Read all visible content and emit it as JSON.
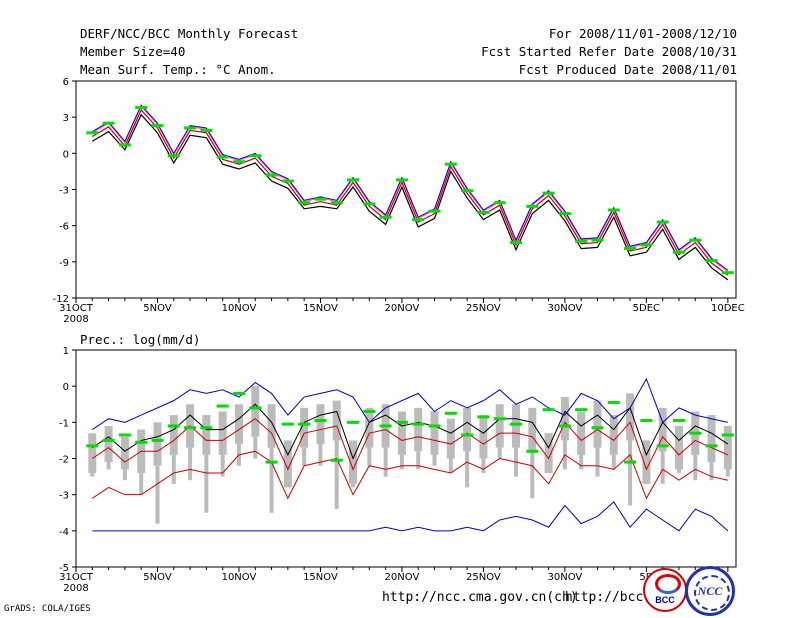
{
  "header": {
    "title": "DERF/NCC/BCC Monthly Forecast",
    "member": "Member Size=40",
    "variable": "Mean Surf. Temp.: °C Anom.",
    "period": "For 2008/11/01-2008/12/10",
    "refer": "Fcst Started Refer Date 2008/10/31",
    "produced": "Fcst Produced Date 2008/11/01"
  },
  "footer": {
    "grads": "GrADS: COLA/IGES",
    "url1": "http://ncc.cma.gov.cn(ch)",
    "url2": "http://bcc.c",
    "logo1": "BCC",
    "logo2": "NCC"
  },
  "colors": {
    "ensemble_mean": "#000000",
    "bounds": "#0000cc",
    "median": "#cc0000",
    "members": "#bbbbbb",
    "marker": "#00dd00",
    "upper_pink": "#ff66cc"
  },
  "chart_data": [
    {
      "type": "line",
      "title": "Mean Surf. Temp.: °C Anom.",
      "xlabel": "",
      "ylabel": "",
      "x": [
        1,
        2,
        3,
        4,
        5,
        6,
        7,
        8,
        9,
        10,
        11,
        12,
        13,
        14,
        15,
        16,
        17,
        18,
        19,
        20,
        21,
        22,
        23,
        24,
        25,
        26,
        27,
        28,
        29,
        30,
        31,
        32,
        33,
        34,
        35,
        36,
        37,
        38,
        39,
        40
      ],
      "ylim": [
        -12,
        6
      ],
      "yticks": [
        6,
        3,
        0,
        -3,
        -6,
        -9,
        -12
      ],
      "xtick_labels": [
        {
          "x": 0,
          "label": "31OCT"
        },
        {
          "x": 5,
          "label": "5NOV"
        },
        {
          "x": 10,
          "label": "10NOV"
        },
        {
          "x": 15,
          "label": "15NOV"
        },
        {
          "x": 20,
          "label": "20NOV"
        },
        {
          "x": 25,
          "label": "25NOV"
        },
        {
          "x": 30,
          "label": "30NOV"
        },
        {
          "x": 35,
          "label": "5DEC"
        },
        {
          "x": 40,
          "label": "10DEC"
        }
      ],
      "year_label": "2008",
      "series": [
        {
          "name": "upper",
          "values": [
            1.7,
            2.5,
            0.9,
            3.9,
            2.4,
            -0.1,
            2.2,
            2.0,
            -0.2,
            -0.6,
            -0.1,
            -1.6,
            -2.2,
            -4.0,
            -3.7,
            -4.0,
            -2.1,
            -4.1,
            -5.2,
            -2.1,
            -5.4,
            -4.7,
            -0.8,
            -3.0,
            -4.8,
            -4.0,
            -7.3,
            -4.3,
            -3.2,
            -4.9,
            -7.2,
            -7.1,
            -4.6,
            -7.8,
            -7.5,
            -5.6,
            -8.1,
            -7.1,
            -8.8,
            -9.8
          ]
        },
        {
          "name": "mean",
          "values": [
            1.4,
            2.2,
            0.6,
            3.6,
            2.1,
            -0.4,
            1.9,
            1.7,
            -0.5,
            -0.9,
            -0.4,
            -1.9,
            -2.5,
            -4.3,
            -4.0,
            -4.3,
            -2.4,
            -4.4,
            -5.5,
            -2.4,
            -5.7,
            -5.0,
            -1.1,
            -3.3,
            -5.1,
            -4.3,
            -7.6,
            -4.6,
            -3.5,
            -5.2,
            -7.5,
            -7.4,
            -4.9,
            -8.1,
            -7.8,
            -5.9,
            -8.4,
            -7.4,
            -9.1,
            -10.1
          ]
        },
        {
          "name": "lower",
          "values": [
            1.0,
            1.8,
            0.3,
            3.2,
            1.7,
            -0.8,
            1.5,
            1.3,
            -0.9,
            -1.3,
            -0.8,
            -2.3,
            -2.9,
            -4.6,
            -4.4,
            -4.6,
            -2.8,
            -4.8,
            -5.9,
            -2.8,
            -6.1,
            -5.4,
            -1.5,
            -3.7,
            -5.5,
            -4.7,
            -8.0,
            -5.0,
            -3.9,
            -5.6,
            -7.9,
            -7.8,
            -5.3,
            -8.5,
            -8.2,
            -6.3,
            -8.8,
            -7.8,
            -9.5,
            -10.5
          ]
        },
        {
          "name": "marker",
          "values": [
            1.7,
            2.5,
            0.7,
            3.8,
            2.3,
            -0.2,
            2.1,
            1.9,
            -0.3,
            -0.7,
            -0.2,
            -1.8,
            -2.3,
            -4.1,
            -3.8,
            -4.1,
            -2.2,
            -4.2,
            -5.3,
            -2.2,
            -5.5,
            -4.8,
            -0.9,
            -3.1,
            -4.9,
            -4.1,
            -7.4,
            -4.4,
            -3.3,
            -5.0,
            -7.3,
            -7.2,
            -4.7,
            -7.9,
            -7.6,
            -5.7,
            -8.2,
            -7.2,
            -8.9,
            -9.9
          ]
        }
      ]
    },
    {
      "type": "line",
      "title": "Prec.: log(mm/d)",
      "xlabel": "",
      "ylabel": "",
      "x": [
        1,
        2,
        3,
        4,
        5,
        6,
        7,
        8,
        9,
        10,
        11,
        12,
        13,
        14,
        15,
        16,
        17,
        18,
        19,
        20,
        21,
        22,
        23,
        24,
        25,
        26,
        27,
        28,
        29,
        30,
        31,
        32,
        33,
        34,
        35,
        36,
        37,
        38,
        39,
        40
      ],
      "ylim": [
        -5,
        1
      ],
      "yticks": [
        1,
        0,
        -1,
        -2,
        -3,
        -4,
        -5
      ],
      "xtick_labels": [
        {
          "x": 0,
          "label": "31OCT"
        },
        {
          "x": 5,
          "label": "5NOV"
        },
        {
          "x": 10,
          "label": "10NOV"
        },
        {
          "x": 15,
          "label": "15NOV"
        },
        {
          "x": 20,
          "label": "20NOV"
        },
        {
          "x": 25,
          "label": "25NOV"
        },
        {
          "x": 30,
          "label": "30NOV"
        },
        {
          "x": 35,
          "label": "5D"
        },
        {
          "x": 40,
          "label": ""
        }
      ],
      "year_label": "2008",
      "series": [
        {
          "name": "max",
          "values": [
            -1.2,
            -0.9,
            -1.0,
            -0.8,
            -0.6,
            -0.4,
            -0.1,
            -0.2,
            -0.1,
            -0.3,
            0.1,
            -0.2,
            -0.8,
            -0.3,
            -0.2,
            -0.1,
            -0.3,
            -1.0,
            -0.6,
            -0.4,
            -0.2,
            -0.7,
            -0.4,
            -0.6,
            -0.4,
            -0.1,
            -0.5,
            -0.3,
            -0.6,
            -0.8,
            -0.2,
            -0.4,
            -0.9,
            -0.6,
            0.2,
            -1.0,
            -0.6,
            -0.8,
            -0.9,
            -1.0
          ]
        },
        {
          "name": "mean",
          "values": [
            -1.7,
            -1.4,
            -1.8,
            -1.5,
            -1.4,
            -1.2,
            -0.8,
            -1.2,
            -1.2,
            -0.9,
            -0.5,
            -1.0,
            -1.9,
            -1.0,
            -0.8,
            -0.7,
            -2.0,
            -1.0,
            -0.8,
            -1.1,
            -1.0,
            -1.1,
            -1.3,
            -1.0,
            -1.3,
            -0.9,
            -0.9,
            -1.0,
            -1.7,
            -0.7,
            -1.1,
            -0.8,
            -1.2,
            -0.6,
            -1.9,
            -1.0,
            -1.5,
            -1.1,
            -1.3,
            -1.6
          ]
        },
        {
          "name": "median",
          "values": [
            -2.0,
            -1.7,
            -2.1,
            -1.8,
            -1.8,
            -1.5,
            -1.1,
            -1.5,
            -1.5,
            -1.2,
            -0.9,
            -1.3,
            -2.3,
            -1.3,
            -1.2,
            -1.1,
            -2.3,
            -1.3,
            -1.2,
            -1.5,
            -1.4,
            -1.5,
            -1.6,
            -1.3,
            -1.6,
            -1.3,
            -1.3,
            -1.4,
            -2.0,
            -1.0,
            -1.5,
            -1.2,
            -1.5,
            -1.0,
            -2.3,
            -1.4,
            -1.9,
            -1.5,
            -1.7,
            -1.9
          ]
        },
        {
          "name": "lower",
          "values": [
            -3.1,
            -2.8,
            -3.0,
            -3.0,
            -2.7,
            -2.4,
            -2.3,
            -2.4,
            -2.4,
            -1.9,
            -1.8,
            -2.1,
            -3.1,
            -2.2,
            -2.1,
            -2.0,
            -3.0,
            -2.2,
            -2.3,
            -2.2,
            -2.2,
            -2.3,
            -2.4,
            -2.1,
            -2.3,
            -2.0,
            -2.1,
            -2.2,
            -2.7,
            -1.9,
            -2.2,
            -2.2,
            -2.3,
            -1.9,
            -3.1,
            -2.3,
            -2.6,
            -2.3,
            -2.5,
            -2.6
          ]
        },
        {
          "name": "min",
          "values": [
            -4.0,
            -4.0,
            -4.0,
            -4.0,
            -4.0,
            -4.0,
            -4.0,
            -4.0,
            -4.0,
            -4.0,
            -4.0,
            -4.0,
            -4.0,
            -4.0,
            -4.0,
            -4.0,
            -4.0,
            -4.0,
            -3.9,
            -4.0,
            -3.9,
            -4.0,
            -4.0,
            -3.9,
            -4.0,
            -3.7,
            -3.6,
            -3.7,
            -3.9,
            -3.3,
            -3.8,
            -3.6,
            -3.2,
            -3.9,
            -3.4,
            -3.7,
            -4.0,
            -3.4,
            -3.6,
            -4.0
          ]
        },
        {
          "name": "marker",
          "values": [
            -1.65,
            -1.5,
            -1.35,
            -1.55,
            -1.5,
            -1.1,
            -1.15,
            -1.15,
            -0.55,
            -0.2,
            -0.6,
            -2.1,
            -1.05,
            -1.05,
            -0.95,
            -2.05,
            -1.0,
            -0.7,
            -1.1,
            -1.0,
            -1.05,
            -1.1,
            -0.75,
            -1.35,
            -0.85,
            -0.9,
            -1.05,
            -1.8,
            -0.65,
            -1.1,
            -0.65,
            -1.15,
            -0.45,
            -2.1,
            -0.95,
            -1.65,
            -0.95,
            -1.3,
            -1.65,
            -1.35
          ]
        },
        {
          "name": "box_top",
          "values": [
            -1.3,
            -1.1,
            -1.4,
            -1.2,
            -1.0,
            -0.8,
            -0.5,
            -0.8,
            -0.7,
            -0.5,
            0.0,
            -0.5,
            -1.5,
            -0.6,
            -0.5,
            -0.4,
            -1.5,
            -0.6,
            -0.5,
            -0.7,
            -0.6,
            -0.7,
            -0.9,
            -0.6,
            -0.8,
            -0.5,
            -0.5,
            -0.6,
            -1.3,
            -0.3,
            -0.7,
            -0.4,
            -0.8,
            -0.2,
            -1.5,
            -0.6,
            -1.1,
            -0.7,
            -0.8,
            -1.1
          ]
        },
        {
          "name": "box_bottom",
          "values": [
            -2.4,
            -2.1,
            -2.3,
            -2.4,
            -2.2,
            -1.9,
            -1.7,
            -1.9,
            -1.9,
            -1.6,
            -1.4,
            -1.7,
            -2.8,
            -1.7,
            -1.6,
            -1.5,
            -2.7,
            -1.7,
            -1.7,
            -1.9,
            -1.8,
            -1.9,
            -2.0,
            -1.8,
            -2.0,
            -1.7,
            -1.7,
            -1.8,
            -2.4,
            -1.5,
            -1.9,
            -1.7,
            -1.9,
            -1.5,
            -2.7,
            -1.8,
            -2.3,
            -1.9,
            -2.1,
            -2.3
          ]
        },
        {
          "name": "whisker_bottom",
          "values": [
            -2.5,
            -2.3,
            -2.6,
            -3.0,
            -3.8,
            -2.7,
            -2.6,
            -3.5,
            -2.5,
            -2.2,
            -2.0,
            -3.5,
            -2.6,
            -2.2,
            -2.2,
            -3.4,
            -2.8,
            -2.2,
            -2.5,
            -2.3,
            -2.3,
            -2.2,
            -2.4,
            -2.8,
            -2.4,
            -2.0,
            -2.5,
            -3.1,
            -2.2,
            -2.3,
            -2.3,
            -2.5,
            -2.3,
            -3.3,
            -2.6,
            -2.7,
            -2.4,
            -2.6,
            -2.6,
            -2.5
          ]
        }
      ]
    }
  ]
}
